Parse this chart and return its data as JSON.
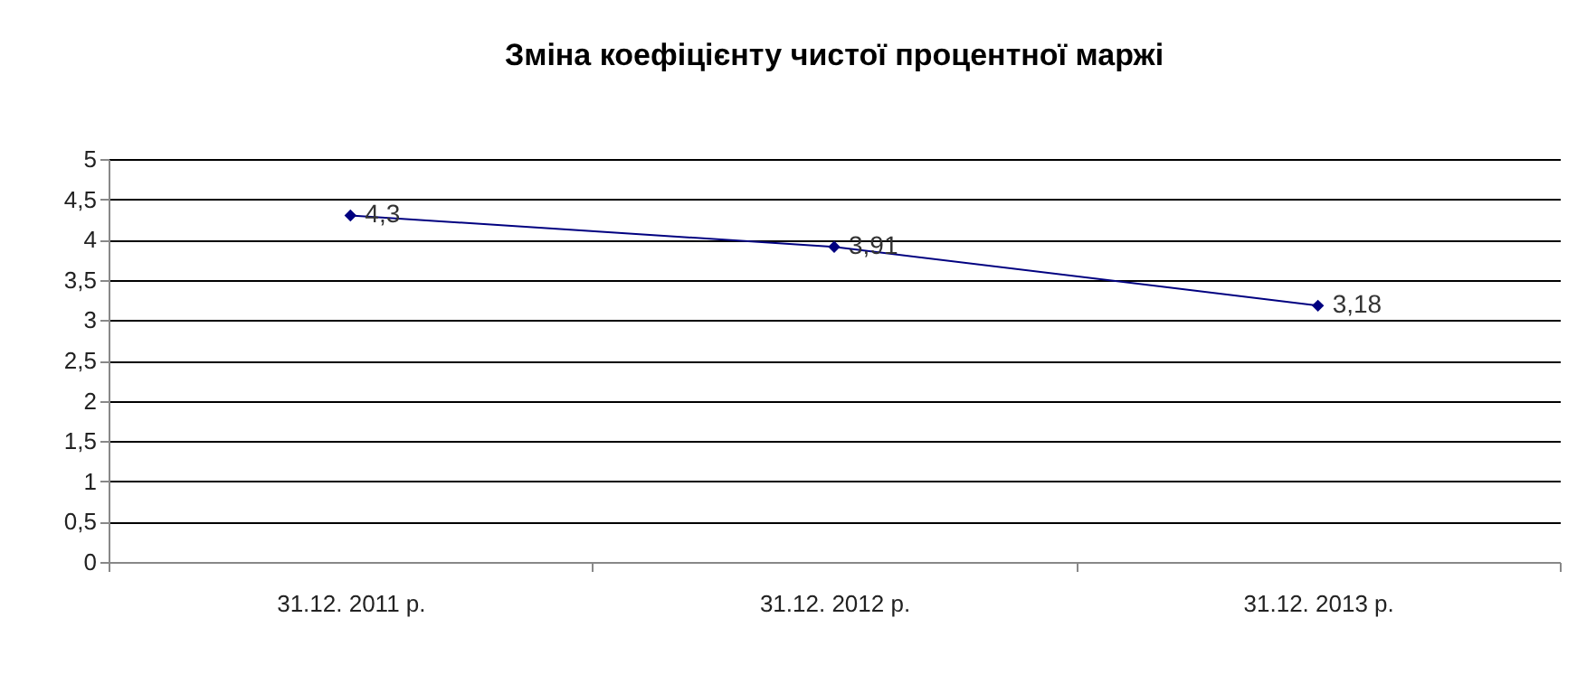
{
  "chart_data": {
    "type": "line",
    "title": "Зміна коефіцієнту чистої процентної маржі",
    "categories": [
      "31.12. 2011 р.",
      "31.12. 2012 р.",
      "31.12. 2013 р."
    ],
    "series": [
      {
        "color": "#000080",
        "values": [
          4.3,
          3.91,
          3.18
        ],
        "value_labels": [
          "4,3",
          "3,91",
          "3,18"
        ]
      }
    ],
    "ylim": [
      0,
      5
    ],
    "yticks": [
      0,
      {
        "value": 0.5,
        "label": "0,5"
      },
      1,
      {
        "value": 1.5,
        "label": "1,5"
      },
      2,
      {
        "value": 2.5,
        "label": "2,5"
      },
      3,
      {
        "value": 3.5,
        "label": "3,5"
      },
      4,
      {
        "value": 4.5,
        "label": "4,5"
      },
      5
    ],
    "grid": "y",
    "marker": "diamond"
  }
}
